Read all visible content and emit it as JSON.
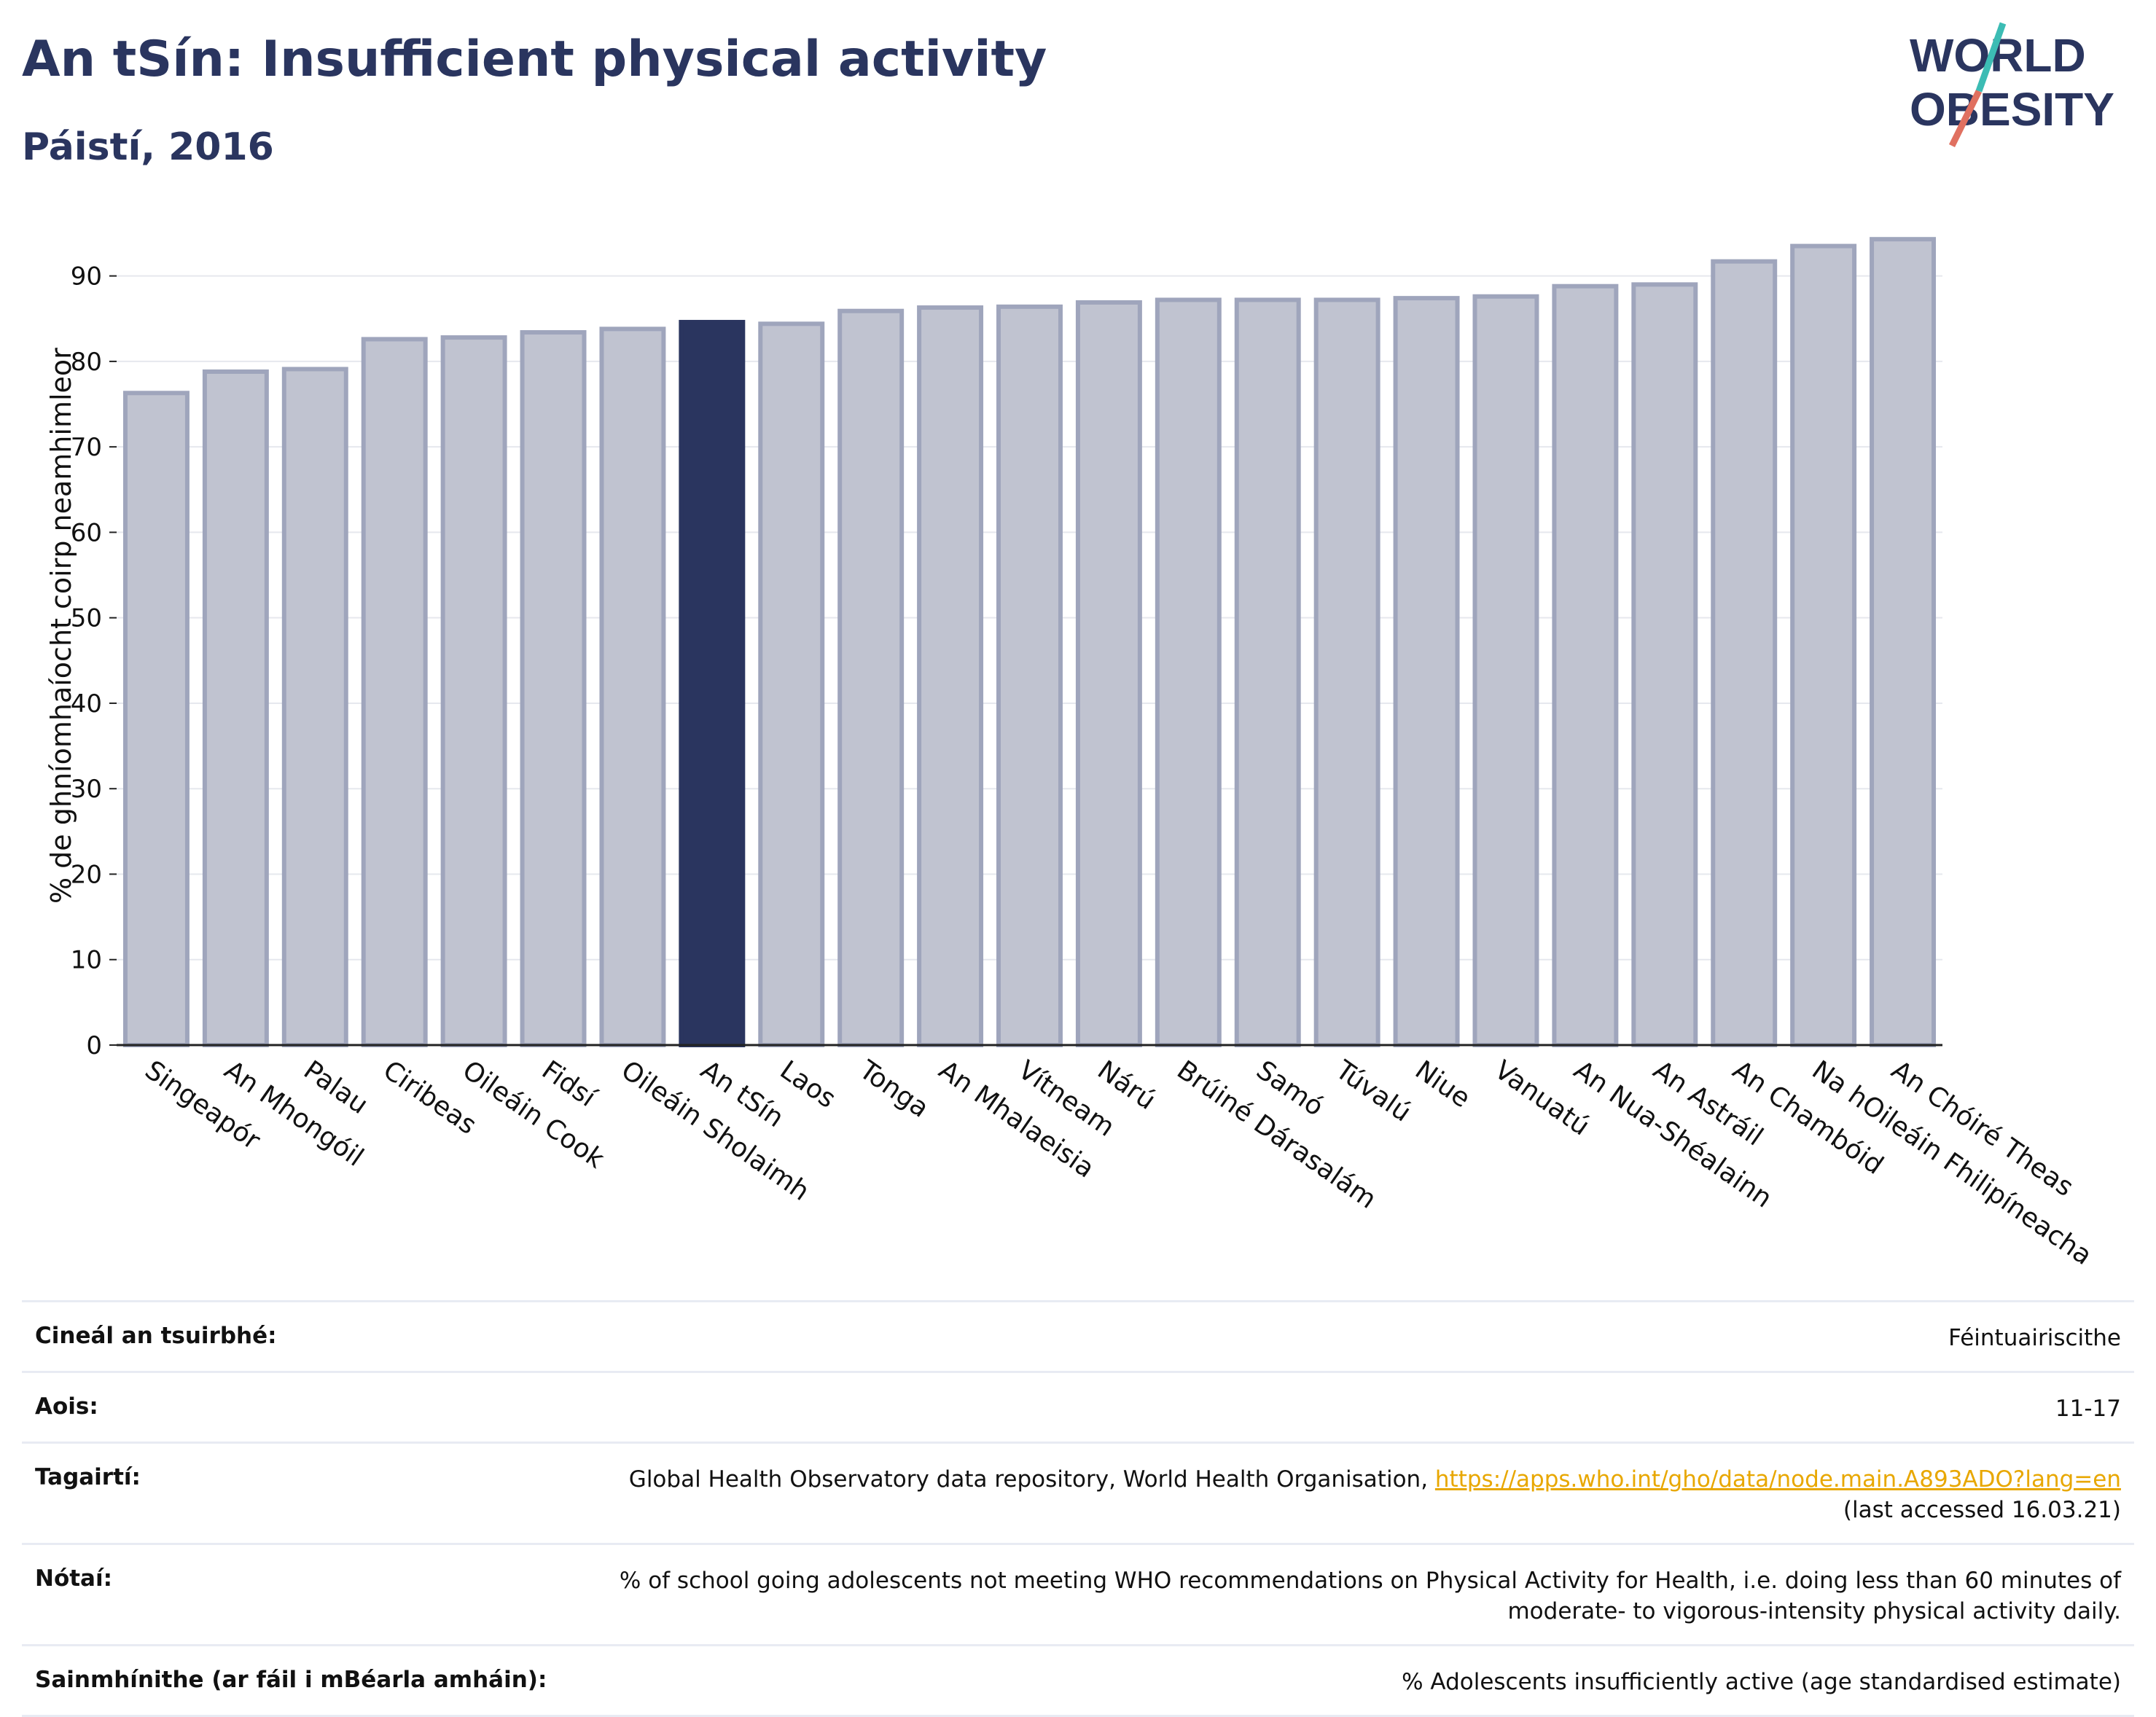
{
  "header": {
    "title": "An tSín: Insufficient physical activity",
    "subtitle": "Páistí, 2016"
  },
  "logo": {
    "line1": "WORLD",
    "line2": "OBESITY"
  },
  "colors": {
    "bar": "#c0c3d0",
    "bar_border": "#9fa5bc",
    "highlight": "#2a355f",
    "title": "#2a355f",
    "link": "#e8a700"
  },
  "chart_data": {
    "type": "bar",
    "ylabel": "% de ghníomhaíocht coirp neamhimleor",
    "ylim": [
      0,
      95
    ],
    "yticks": [
      0,
      10,
      20,
      30,
      40,
      50,
      60,
      70,
      80,
      90
    ],
    "grid": true,
    "categories": [
      "Singeapór",
      "An Mhongóil",
      "Palau",
      "Ciribeas",
      "Oileáin Cook",
      "Fidsí",
      "Oileáin Sholaimh",
      "An tSín",
      "Laos",
      "Tonga",
      "An Mhalaeisia",
      "Vítneam",
      "Nárú",
      "Brúiné Dárasalám",
      "Samó",
      "Túvalú",
      "Niue",
      "Vanuatú",
      "An Nua-Shéalainn",
      "An Astráil",
      "An Chambóid",
      "Na hOileáin Fhilipíneacha",
      "An Chóiré Theas"
    ],
    "values": [
      76.3,
      78.8,
      79.1,
      82.6,
      82.8,
      83.4,
      83.8,
      84.6,
      84.4,
      85.9,
      86.3,
      86.4,
      86.9,
      87.2,
      87.2,
      87.2,
      87.4,
      87.6,
      88.8,
      89.0,
      91.7,
      93.5,
      94.3
    ],
    "highlight": "An tSín"
  },
  "meta": [
    {
      "label": "Cineál an tsuirbhé:",
      "value": "Féintuairiscithe"
    },
    {
      "label": "Aois:",
      "value": "11-17"
    },
    {
      "label": "Tagairtí:",
      "value": "Global Health Observatory data repository, World Health Organisation, ",
      "link": "https://apps.who.int/gho/data/node.main.A893ADO?lang=en",
      "value2": "(last accessed 16.03.21)"
    },
    {
      "label": "Nótaí:",
      "value": "% of school going adolescents not meeting WHO recommendations on Physical Activity for Health, i.e. doing less than 60 minutes of",
      "value2": "moderate- to vigorous-intensity physical activity daily."
    },
    {
      "label": "Sainmhínithe (ar fáil i mBéarla amháin):",
      "value": "% Adolescents insufficiently active (age standardised estimate)"
    }
  ]
}
